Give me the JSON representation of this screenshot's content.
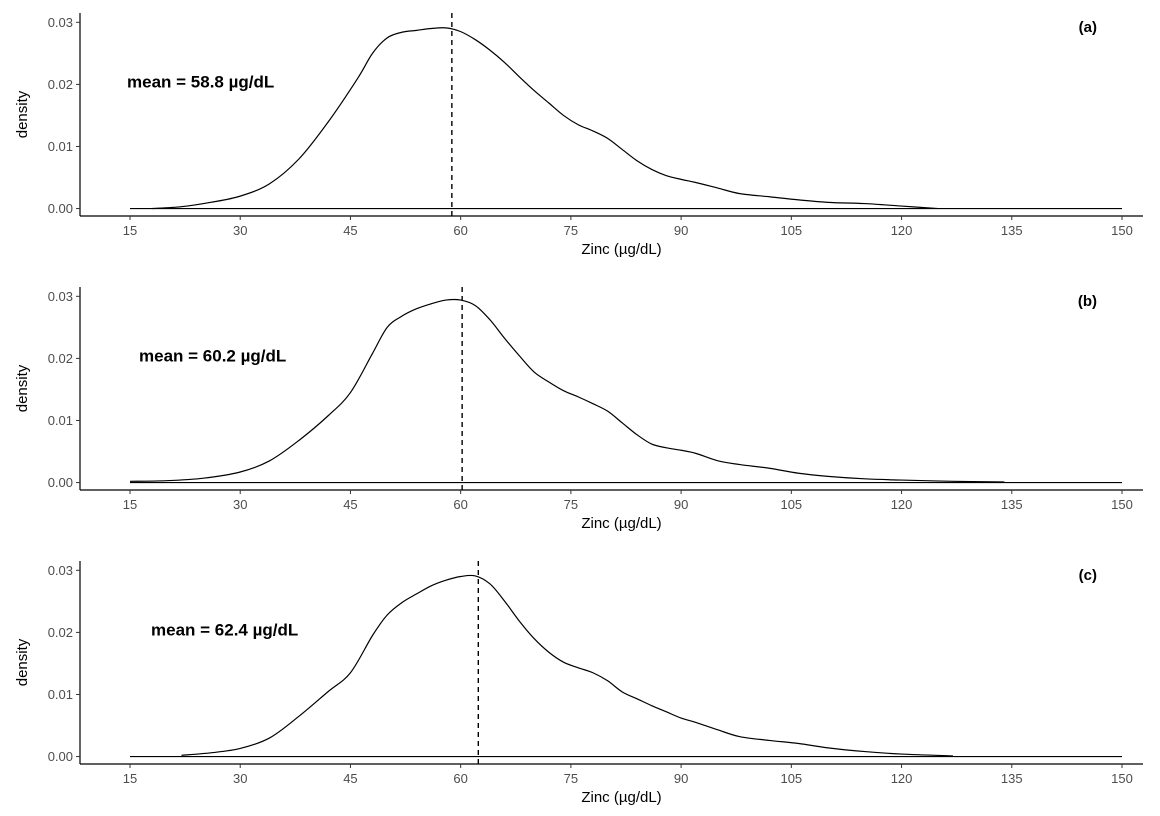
{
  "chart_data": [
    {
      "type": "line",
      "panel": "(a)",
      "xlabel": "Zinc (µg/dL)",
      "ylabel": "density",
      "xlim": [
        10,
        152
      ],
      "ylim": [
        -0.0012,
        0.0315
      ],
      "x_ticks": [
        15,
        30,
        45,
        60,
        75,
        90,
        105,
        120,
        135,
        150
      ],
      "y_ticks": [
        0.0,
        0.01,
        0.02,
        0.03
      ],
      "y_tick_labels": [
        "0.00",
        "0.01",
        "0.02",
        "0.03"
      ],
      "grid": false,
      "mean_value": 58.8,
      "mean_label": "mean = 58.8 µg/dL",
      "baseline_range": [
        15,
        150
      ],
      "x": [
        18,
        22,
        26,
        30,
        34,
        38,
        42,
        46,
        48,
        50,
        52,
        54,
        56,
        58,
        60,
        62,
        64,
        66,
        68,
        70,
        72,
        74,
        76,
        78,
        80,
        82,
        84,
        86,
        88,
        90,
        92,
        95,
        98,
        102,
        106,
        110,
        115,
        120,
        125
      ],
      "values": [
        0.0,
        0.0003,
        0.001,
        0.002,
        0.004,
        0.008,
        0.014,
        0.021,
        0.025,
        0.0275,
        0.0284,
        0.0287,
        0.029,
        0.0291,
        0.0285,
        0.0272,
        0.0255,
        0.0235,
        0.0212,
        0.019,
        0.017,
        0.015,
        0.0135,
        0.0125,
        0.0113,
        0.0095,
        0.0077,
        0.0063,
        0.0053,
        0.0047,
        0.0042,
        0.0033,
        0.0024,
        0.0019,
        0.0014,
        0.001,
        0.0008,
        0.0004,
        0.0
      ]
    },
    {
      "type": "line",
      "panel": "(b)",
      "xlabel": "Zinc (µg/dL)",
      "ylabel": "density",
      "xlim": [
        10,
        152
      ],
      "ylim": [
        -0.0012,
        0.0315
      ],
      "x_ticks": [
        15,
        30,
        45,
        60,
        75,
        90,
        105,
        120,
        135,
        150
      ],
      "y_ticks": [
        0.0,
        0.01,
        0.02,
        0.03
      ],
      "y_tick_labels": [
        "0.00",
        "0.01",
        "0.02",
        "0.03"
      ],
      "grid": false,
      "mean_value": 60.2,
      "mean_label": "mean = 60.2 µg/dL",
      "baseline_range": [
        15,
        150
      ],
      "x": [
        15,
        20,
        25,
        30,
        34,
        38,
        42,
        45,
        48,
        50,
        52,
        54,
        56,
        58,
        60,
        62,
        64,
        66,
        68,
        70,
        72,
        74,
        76,
        78,
        80,
        82,
        84,
        86,
        88,
        90,
        92,
        95,
        98,
        102,
        106,
        110,
        115,
        120,
        127,
        134
      ],
      "values": [
        0.0002,
        0.0003,
        0.0007,
        0.0017,
        0.0035,
        0.0068,
        0.0108,
        0.0145,
        0.0208,
        0.025,
        0.0268,
        0.028,
        0.0288,
        0.0294,
        0.0294,
        0.0285,
        0.0262,
        0.0232,
        0.0204,
        0.0178,
        0.0162,
        0.0148,
        0.0138,
        0.0127,
        0.0115,
        0.0096,
        0.0077,
        0.0062,
        0.0056,
        0.0052,
        0.0047,
        0.0035,
        0.0029,
        0.0023,
        0.0015,
        0.001,
        0.0006,
        0.0004,
        0.0002,
        0.0001
      ]
    },
    {
      "type": "line",
      "panel": "(c)",
      "xlabel": "Zinc (µg/dL)",
      "ylabel": "density",
      "xlim": [
        10,
        152
      ],
      "ylim": [
        -0.0012,
        0.0315
      ],
      "x_ticks": [
        15,
        30,
        45,
        60,
        75,
        90,
        105,
        120,
        135,
        150
      ],
      "y_ticks": [
        0.0,
        0.01,
        0.02,
        0.03
      ],
      "y_tick_labels": [
        "0.00",
        "0.01",
        "0.02",
        "0.03"
      ],
      "grid": false,
      "mean_value": 62.4,
      "mean_label": "mean = 62.4 µg/dL",
      "baseline_range": [
        15,
        150
      ],
      "x": [
        22,
        26,
        30,
        34,
        38,
        42,
        45,
        48,
        50,
        52,
        54,
        56,
        58,
        60,
        62,
        64,
        66,
        68,
        70,
        72,
        74,
        76,
        78,
        80,
        82,
        84,
        86,
        88,
        90,
        92,
        95,
        98,
        102,
        106,
        110,
        115,
        120,
        127
      ],
      "values": [
        0.0002,
        0.0006,
        0.0013,
        0.003,
        0.0065,
        0.0105,
        0.0135,
        0.0195,
        0.0228,
        0.0248,
        0.0262,
        0.0275,
        0.0284,
        0.029,
        0.0291,
        0.0278,
        0.025,
        0.0218,
        0.019,
        0.0168,
        0.0152,
        0.0143,
        0.0135,
        0.0122,
        0.0104,
        0.0093,
        0.0082,
        0.0072,
        0.0062,
        0.0055,
        0.0043,
        0.0032,
        0.0026,
        0.0021,
        0.0014,
        0.0008,
        0.0004,
        0.0001
      ]
    }
  ]
}
